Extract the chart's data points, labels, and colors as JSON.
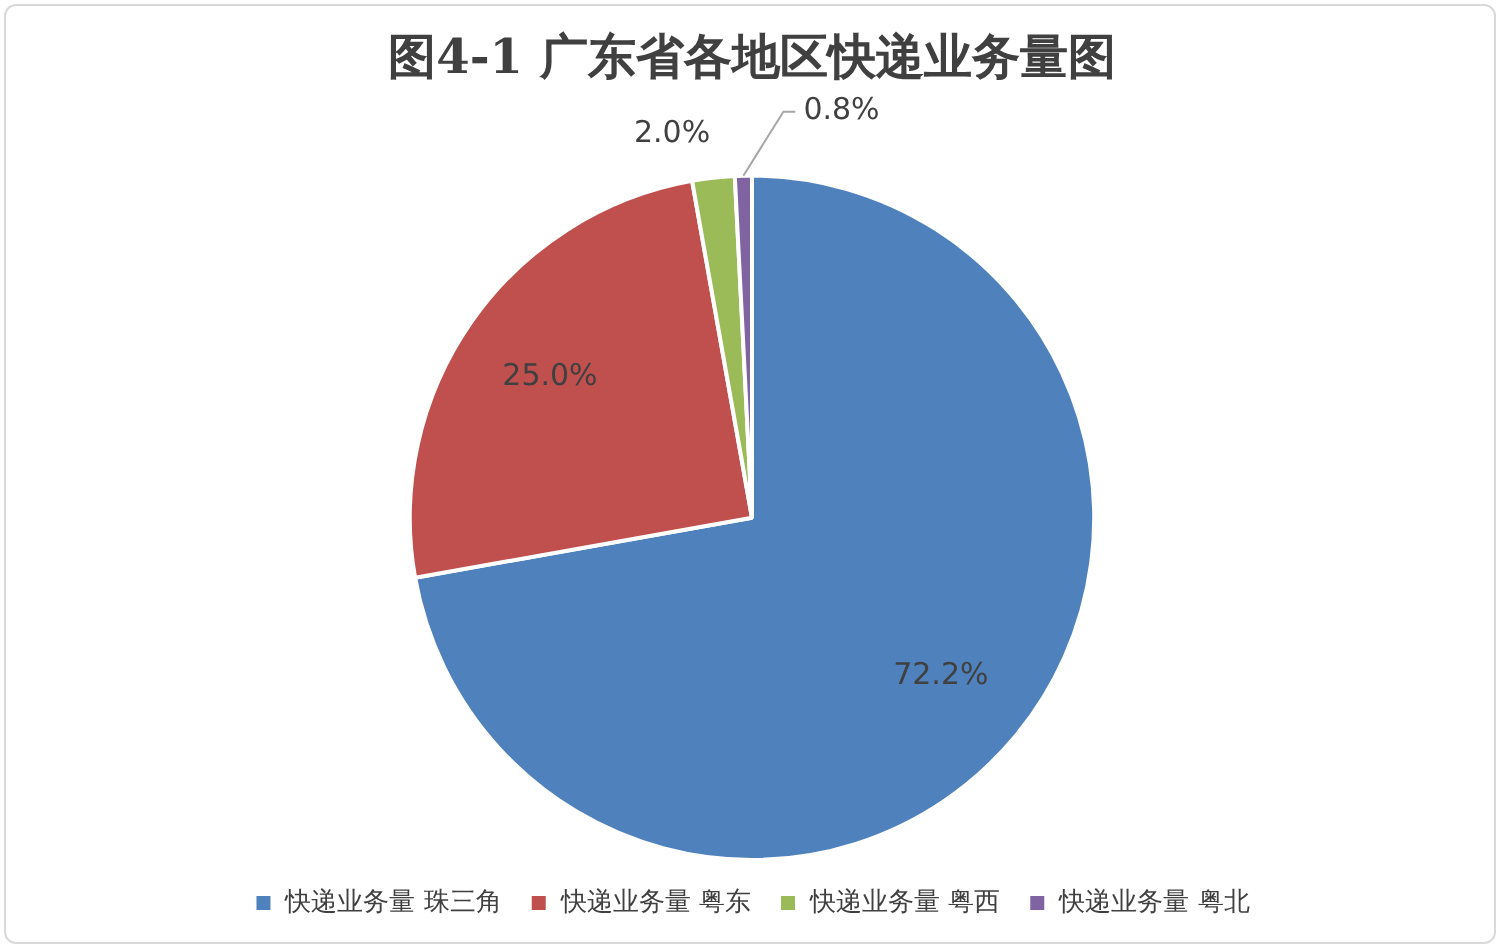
{
  "chart_data": {
    "type": "pie",
    "title": "图4-1 广东省各地区快递业务量图",
    "categories": [
      "快递业务量 珠三角",
      "快递业务量 粤东",
      "快递业务量 粤西",
      "快递业务量 粤北"
    ],
    "values": [
      72.2,
      25.0,
      2.0,
      0.8
    ],
    "colors": [
      "#4f81bd",
      "#c0504d",
      "#9bbb59",
      "#8064a2"
    ],
    "value_labels": [
      "72.2%",
      "25.0%",
      "2.0%",
      "0.8%"
    ],
    "legend": "bottom"
  }
}
